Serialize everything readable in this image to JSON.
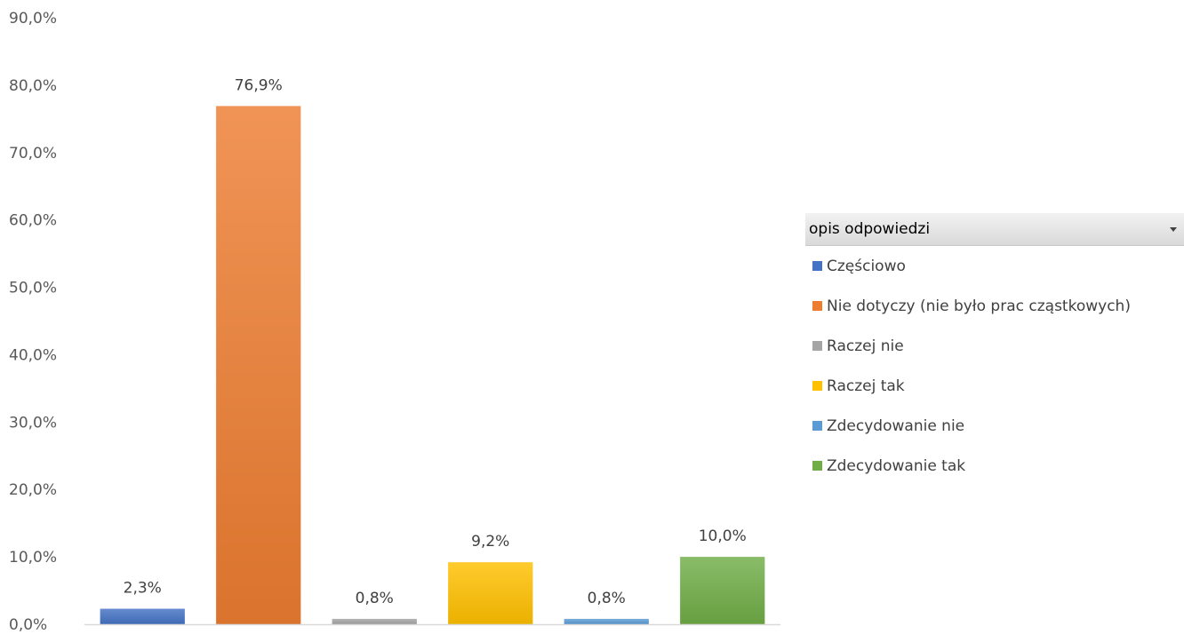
{
  "legend": {
    "title": "opis odpowiedzi",
    "dropdown_icon": "dropdown-arrow-icon"
  },
  "chart_data": {
    "type": "bar",
    "categories": [
      "Częściowo",
      "Nie dotyczy (nie było prac cząstkowych)",
      "Raczej nie",
      "Raczej tak",
      "Zdecydowanie nie",
      "Zdecydowanie tak"
    ],
    "values": [
      2.3,
      76.9,
      0.8,
      9.2,
      0.8,
      10.0
    ],
    "value_labels": [
      "2,3%",
      "76,9%",
      "0,8%",
      "9,2%",
      "0,8%",
      "10,0%"
    ],
    "colors": [
      "#4472c4",
      "#ed7d31",
      "#a5a5a5",
      "#ffc000",
      "#5b9bd5",
      "#70ad47"
    ],
    "y_ticks": [
      "0,0%",
      "10,0%",
      "20,0%",
      "30,0%",
      "40,0%",
      "50,0%",
      "60,0%",
      "70,0%",
      "80,0%",
      "90,0%"
    ],
    "ylim": [
      0,
      90
    ],
    "ytick_step": 10,
    "grid": false,
    "legend_position": "right",
    "title": "",
    "xlabel": "",
    "ylabel": ""
  }
}
